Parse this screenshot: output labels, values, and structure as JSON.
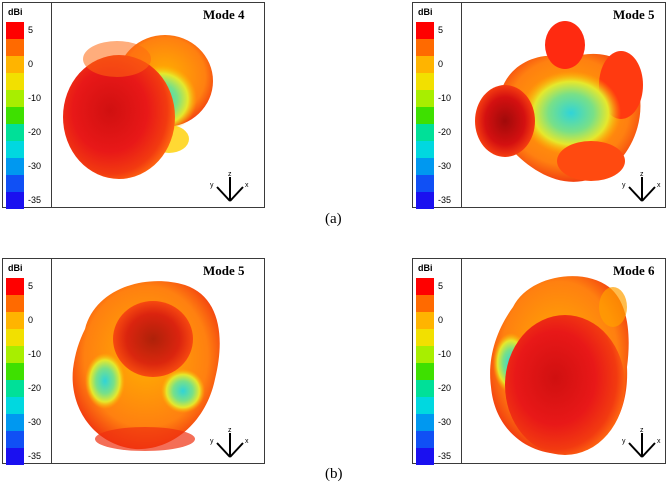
{
  "panels": [
    {
      "mode": "Mode 4"
    },
    {
      "mode": "Mode 5"
    },
    {
      "mode": "Mode 5"
    },
    {
      "mode": "Mode 6"
    }
  ],
  "colorbar": {
    "unit": "dBi",
    "ticks": [
      "5",
      "0",
      "-10",
      "-20",
      "-30",
      "-35"
    ],
    "colors": [
      "#ff0000",
      "#ff6a00",
      "#ffb400",
      "#f2e000",
      "#a8ee00",
      "#3ee000",
      "#00e098",
      "#00d8e0",
      "#0098f0",
      "#1050f5",
      "#1a10f0"
    ]
  },
  "axes": {
    "x": "x",
    "y": "y",
    "z": "z"
  },
  "captions": {
    "a": "(a)",
    "b": "(b)"
  }
}
